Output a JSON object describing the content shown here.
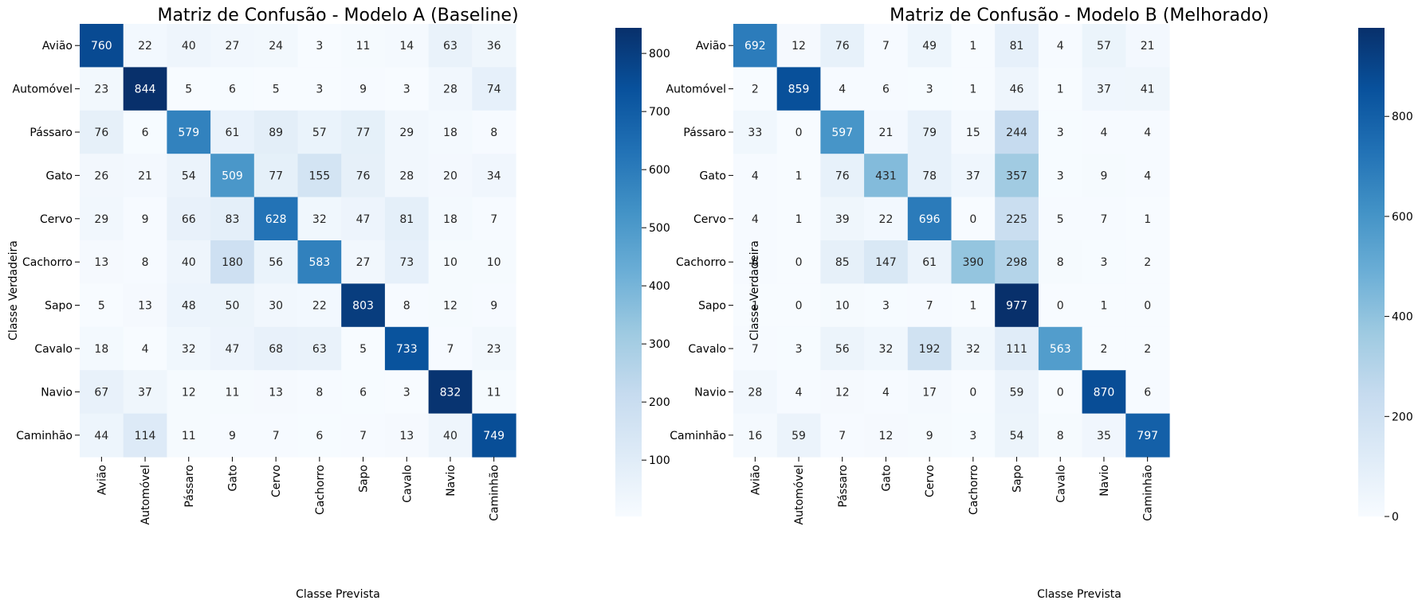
{
  "chart_data": [
    {
      "type": "heatmap",
      "title": "Matriz de Confusão - Modelo A (Baseline)",
      "xlabel": "Classe Prevista",
      "ylabel": "Classe Verdadeira",
      "x_categories": [
        "Avião",
        "Automóvel",
        "Pássaro",
        "Gato",
        "Cervo",
        "Cachorro",
        "Sapo",
        "Cavalo",
        "Navio",
        "Caminhão"
      ],
      "y_categories": [
        "Avião",
        "Automóvel",
        "Pássaro",
        "Gato",
        "Cervo",
        "Cachorro",
        "Sapo",
        "Cavalo",
        "Navio",
        "Caminhão"
      ],
      "values": [
        [
          760,
          22,
          40,
          27,
          24,
          3,
          11,
          14,
          63,
          36
        ],
        [
          23,
          844,
          5,
          6,
          5,
          3,
          9,
          3,
          28,
          74
        ],
        [
          76,
          6,
          579,
          61,
          89,
          57,
          77,
          29,
          18,
          8
        ],
        [
          26,
          21,
          54,
          509,
          77,
          155,
          76,
          28,
          20,
          34
        ],
        [
          29,
          9,
          66,
          83,
          628,
          32,
          47,
          81,
          18,
          7
        ],
        [
          13,
          8,
          40,
          180,
          56,
          583,
          27,
          73,
          10,
          10
        ],
        [
          5,
          13,
          48,
          50,
          30,
          22,
          803,
          8,
          12,
          9
        ],
        [
          18,
          4,
          32,
          47,
          68,
          63,
          5,
          733,
          7,
          23
        ],
        [
          67,
          37,
          12,
          11,
          13,
          8,
          6,
          3,
          832,
          11
        ],
        [
          44,
          114,
          11,
          9,
          7,
          6,
          7,
          13,
          40,
          749
        ]
      ],
      "colormap": "Blues",
      "colorbar_range": [
        3,
        844
      ],
      "colorbar_ticks": [
        100,
        200,
        300,
        400,
        500,
        600,
        700,
        800
      ]
    },
    {
      "type": "heatmap",
      "title": "Matriz de Confusão - Modelo B (Melhorado)",
      "xlabel": "Classe Prevista",
      "ylabel": "Classe Verdadeira",
      "x_categories": [
        "Avião",
        "Automóvel",
        "Pássaro",
        "Gato",
        "Cervo",
        "Cachorro",
        "Sapo",
        "Cavalo",
        "Navio",
        "Caminhão"
      ],
      "y_categories": [
        "Avião",
        "Automóvel",
        "Pássaro",
        "Gato",
        "Cervo",
        "Cachorro",
        "Sapo",
        "Cavalo",
        "Navio",
        "Caminhão"
      ],
      "values": [
        [
          692,
          12,
          76,
          7,
          49,
          1,
          81,
          4,
          57,
          21
        ],
        [
          2,
          859,
          4,
          6,
          3,
          1,
          46,
          1,
          37,
          41
        ],
        [
          33,
          0,
          597,
          21,
          79,
          15,
          244,
          3,
          4,
          4
        ],
        [
          4,
          1,
          76,
          431,
          78,
          37,
          357,
          3,
          9,
          4
        ],
        [
          4,
          1,
          39,
          22,
          696,
          0,
          225,
          5,
          7,
          1
        ],
        [
          6,
          0,
          85,
          147,
          61,
          390,
          298,
          8,
          3,
          2
        ],
        [
          1,
          0,
          10,
          3,
          7,
          1,
          977,
          0,
          1,
          0
        ],
        [
          7,
          3,
          56,
          32,
          192,
          32,
          111,
          563,
          2,
          2
        ],
        [
          28,
          4,
          12,
          4,
          17,
          0,
          59,
          0,
          870,
          6
        ],
        [
          16,
          59,
          7,
          12,
          9,
          3,
          54,
          8,
          35,
          797
        ]
      ],
      "colormap": "Blues",
      "colorbar_range": [
        0,
        977
      ],
      "colorbar_ticks": [
        0,
        200,
        400,
        600,
        800
      ]
    }
  ]
}
